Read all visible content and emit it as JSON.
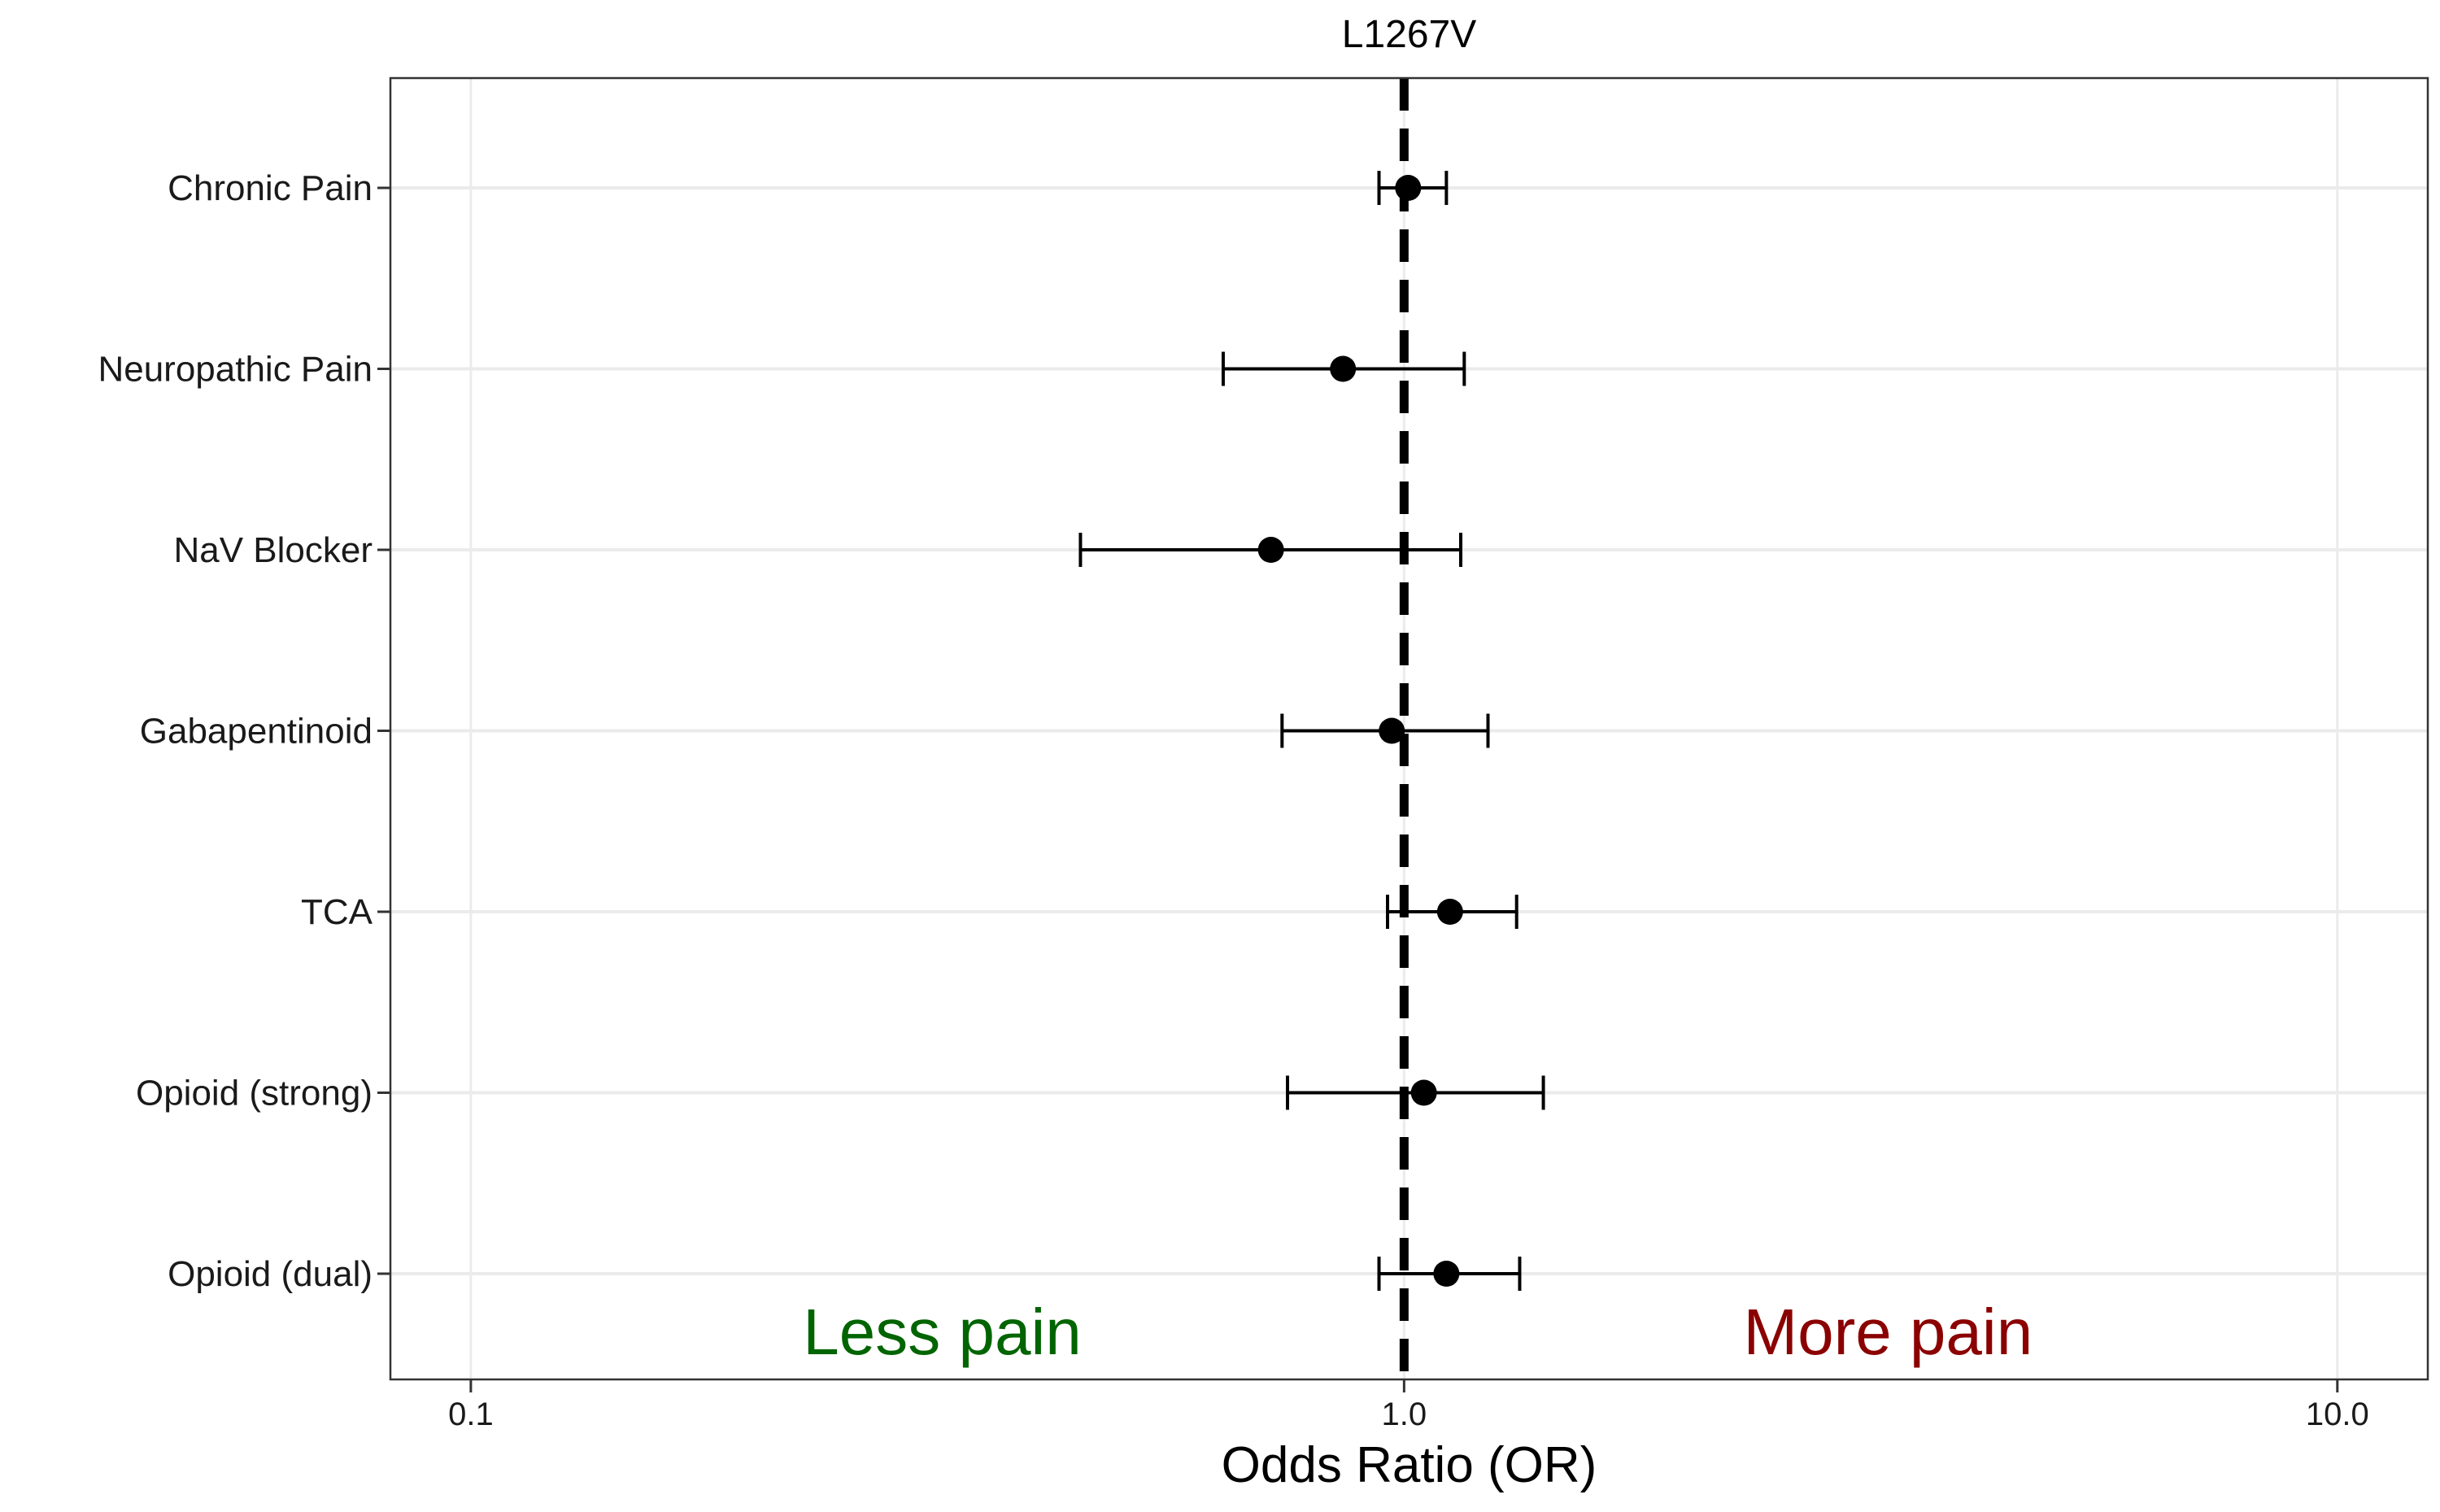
{
  "chart_data": {
    "type": "scatter",
    "subtype": "forest-plot",
    "title": "L1267V",
    "xlabel": "Odds Ratio (OR)",
    "ylabel": "",
    "xscale": "log10",
    "xlim": [
      0.082,
      12.5
    ],
    "xticks": [
      0.1,
      1.0,
      10.0
    ],
    "xtick_labels": [
      "0.1",
      "1.0",
      "10.0"
    ],
    "reference_line": {
      "x": 1.0,
      "style": "dashed"
    },
    "grid": true,
    "categories": [
      "Chronic Pain",
      "Neuropathic Pain",
      "NaV Blocker",
      "Gabapentinoid",
      "TCA",
      "Opioid (strong)",
      "Opioid (dual)"
    ],
    "points": [
      {
        "label": "Chronic Pain",
        "or": 1.01,
        "lower": 0.94,
        "upper": 1.11
      },
      {
        "label": "Neuropathic Pain",
        "or": 0.86,
        "lower": 0.64,
        "upper": 1.16
      },
      {
        "label": "NaV Blocker",
        "or": 0.72,
        "lower": 0.45,
        "upper": 1.15
      },
      {
        "label": "Gabapentinoid",
        "or": 0.97,
        "lower": 0.74,
        "upper": 1.23
      },
      {
        "label": "TCA",
        "or": 1.12,
        "lower": 0.96,
        "upper": 1.32
      },
      {
        "label": "Opioid (strong)",
        "or": 1.05,
        "lower": 0.75,
        "upper": 1.41
      },
      {
        "label": "Opioid (dual)",
        "or": 1.11,
        "lower": 0.94,
        "upper": 1.33
      }
    ],
    "annotations": [
      {
        "text": "Less pain",
        "color": "#006400"
      },
      {
        "text": "More pain",
        "color": "#8b0000"
      }
    ]
  }
}
